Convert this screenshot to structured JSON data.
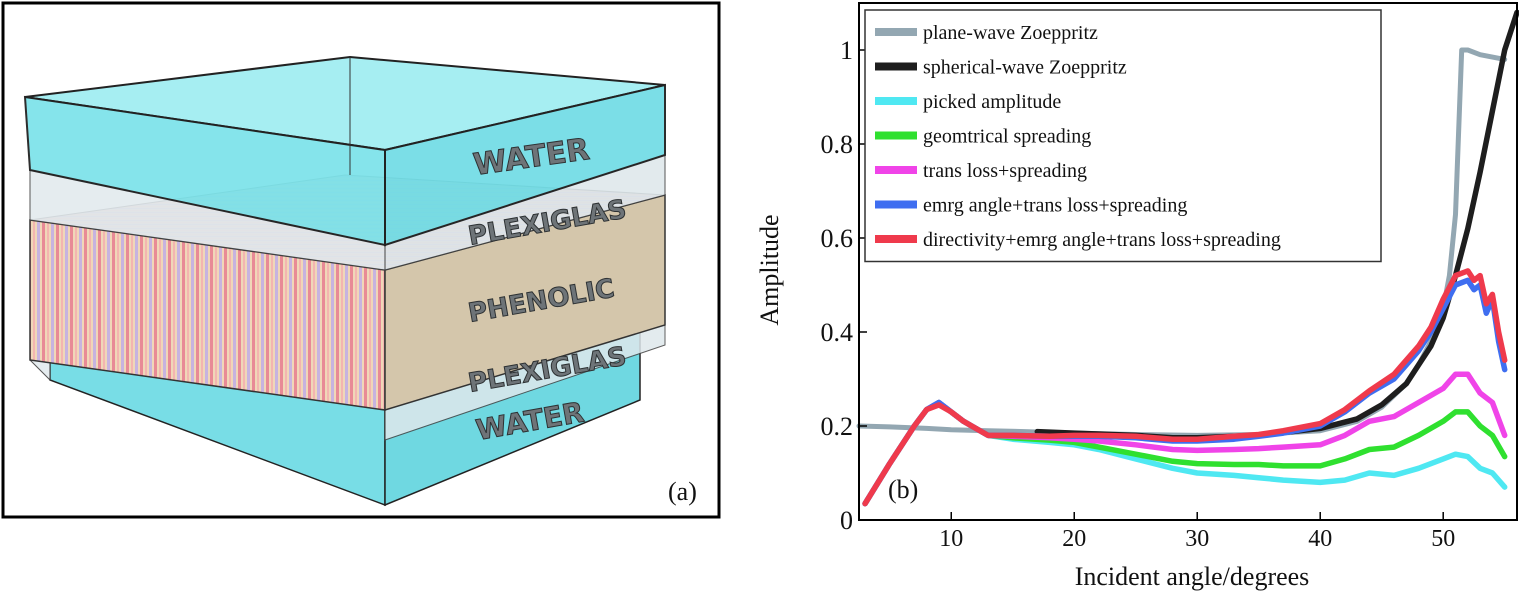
{
  "panel_a": {
    "panel_label": "(a)",
    "layers": [
      "WATER",
      "PLEXIGLAS",
      "PHENOLIC",
      "PLEXIGLAS",
      "WATER"
    ],
    "colors": {
      "water": "#7fe3ea",
      "plexiglas": "#dde6ea",
      "phenolic": "#d4c6ab"
    }
  },
  "chart_data": {
    "type": "line",
    "panel_label": "(b)",
    "title": "",
    "xlabel": "Incident angle/degrees",
    "ylabel": "Amplitude",
    "xlim": [
      2.5,
      56
    ],
    "ylim": [
      0,
      1.1
    ],
    "xticks": [
      10,
      20,
      30,
      40,
      50
    ],
    "yticks": [
      0,
      0.2,
      0.4,
      0.6,
      0.8,
      1
    ],
    "ytick_labels": [
      "0",
      "0.2",
      "0.4",
      "0.6",
      "0.8",
      "1"
    ],
    "legend_position": "top-left",
    "series": [
      {
        "name": "plane-wave Zoeppritz",
        "color": "#93a7b2",
        "x": [
          2.5,
          5,
          8,
          10,
          13,
          16,
          20,
          25,
          30,
          35,
          40,
          43,
          45,
          47,
          48,
          49,
          50,
          50.5,
          51,
          51.5,
          52,
          53,
          54,
          55
        ],
        "y": [
          0.2,
          0.198,
          0.195,
          0.192,
          0.19,
          0.188,
          0.185,
          0.182,
          0.18,
          0.182,
          0.19,
          0.21,
          0.24,
          0.29,
          0.33,
          0.38,
          0.45,
          0.52,
          0.65,
          1.0,
          1.0,
          0.99,
          0.985,
          0.98
        ]
      },
      {
        "name": "spherical-wave Zoeppritz",
        "color": "#1e1e1e",
        "x": [
          17,
          20,
          25,
          28,
          30,
          35,
          40,
          43,
          45,
          47,
          48,
          49,
          50,
          51,
          52,
          53,
          54,
          55,
          56
        ],
        "y": [
          0.188,
          0.185,
          0.18,
          0.175,
          0.175,
          0.18,
          0.195,
          0.215,
          0.245,
          0.29,
          0.33,
          0.37,
          0.43,
          0.52,
          0.62,
          0.74,
          0.87,
          1.0,
          1.08
        ]
      },
      {
        "name": "picked amplitude",
        "color": "#4fe8f2",
        "x": [
          3,
          5,
          7,
          8,
          9,
          10,
          11,
          12,
          13,
          15,
          18,
          20,
          22,
          25,
          28,
          30,
          33,
          35,
          37,
          40,
          42,
          44,
          46,
          48,
          50,
          51,
          52,
          53,
          54,
          55
        ],
        "y": [
          0.035,
          0.12,
          0.2,
          0.235,
          0.25,
          0.23,
          0.21,
          0.195,
          0.18,
          0.172,
          0.165,
          0.16,
          0.15,
          0.13,
          0.11,
          0.1,
          0.095,
          0.09,
          0.085,
          0.08,
          0.085,
          0.1,
          0.095,
          0.11,
          0.13,
          0.14,
          0.135,
          0.11,
          0.1,
          0.07
        ]
      },
      {
        "name": "geomtrical spreading",
        "color": "#2fe02f",
        "x": [
          3,
          5,
          7,
          8,
          9,
          10,
          11,
          12,
          13,
          15,
          18,
          20,
          22,
          25,
          28,
          30,
          33,
          35,
          37,
          40,
          42,
          44,
          46,
          48,
          50,
          51,
          52,
          53,
          54,
          55
        ],
        "y": [
          0.035,
          0.12,
          0.2,
          0.235,
          0.25,
          0.23,
          0.21,
          0.195,
          0.18,
          0.175,
          0.17,
          0.165,
          0.155,
          0.14,
          0.125,
          0.12,
          0.118,
          0.118,
          0.115,
          0.115,
          0.13,
          0.15,
          0.155,
          0.18,
          0.21,
          0.23,
          0.23,
          0.2,
          0.18,
          0.135
        ]
      },
      {
        "name": "trans loss+spreading",
        "color": "#f044e8",
        "x": [
          3,
          5,
          7,
          8,
          9,
          10,
          11,
          12,
          13,
          15,
          18,
          20,
          22,
          25,
          28,
          30,
          33,
          35,
          37,
          40,
          42,
          44,
          46,
          48,
          50,
          51,
          52,
          53,
          54,
          55
        ],
        "y": [
          0.035,
          0.12,
          0.2,
          0.235,
          0.25,
          0.23,
          0.21,
          0.195,
          0.18,
          0.178,
          0.175,
          0.172,
          0.168,
          0.16,
          0.15,
          0.148,
          0.15,
          0.152,
          0.155,
          0.16,
          0.18,
          0.21,
          0.22,
          0.25,
          0.28,
          0.31,
          0.31,
          0.27,
          0.25,
          0.18
        ]
      },
      {
        "name": "emrg angle+trans loss+spreading",
        "color": "#3f6ef0",
        "x": [
          3,
          5,
          7,
          8,
          9,
          10,
          11,
          12,
          13,
          15,
          18,
          20,
          22,
          25,
          28,
          30,
          33,
          35,
          37,
          40,
          42,
          44,
          46,
          48,
          49,
          50,
          51,
          52,
          52.5,
          53,
          53.5,
          54,
          54.5,
          55
        ],
        "y": [
          0.035,
          0.12,
          0.2,
          0.235,
          0.25,
          0.23,
          0.21,
          0.195,
          0.18,
          0.18,
          0.178,
          0.178,
          0.178,
          0.175,
          0.168,
          0.168,
          0.172,
          0.178,
          0.185,
          0.2,
          0.23,
          0.27,
          0.3,
          0.36,
          0.4,
          0.45,
          0.5,
          0.51,
          0.49,
          0.5,
          0.44,
          0.47,
          0.38,
          0.32
        ]
      },
      {
        "name": "directivity+emrg angle+trans loss+spreading",
        "color": "#ef3a4c",
        "x": [
          3,
          5,
          7,
          8,
          9,
          10,
          11,
          12,
          13,
          15,
          18,
          20,
          22,
          25,
          28,
          30,
          33,
          35,
          37,
          40,
          42,
          44,
          46,
          48,
          49,
          50,
          51,
          52,
          52.5,
          53,
          53.5,
          54,
          54.5,
          55
        ],
        "y": [
          0.035,
          0.12,
          0.2,
          0.235,
          0.245,
          0.23,
          0.21,
          0.195,
          0.18,
          0.18,
          0.178,
          0.18,
          0.18,
          0.178,
          0.172,
          0.172,
          0.178,
          0.182,
          0.19,
          0.205,
          0.235,
          0.275,
          0.31,
          0.37,
          0.41,
          0.47,
          0.52,
          0.53,
          0.51,
          0.52,
          0.46,
          0.48,
          0.4,
          0.34
        ]
      }
    ]
  }
}
